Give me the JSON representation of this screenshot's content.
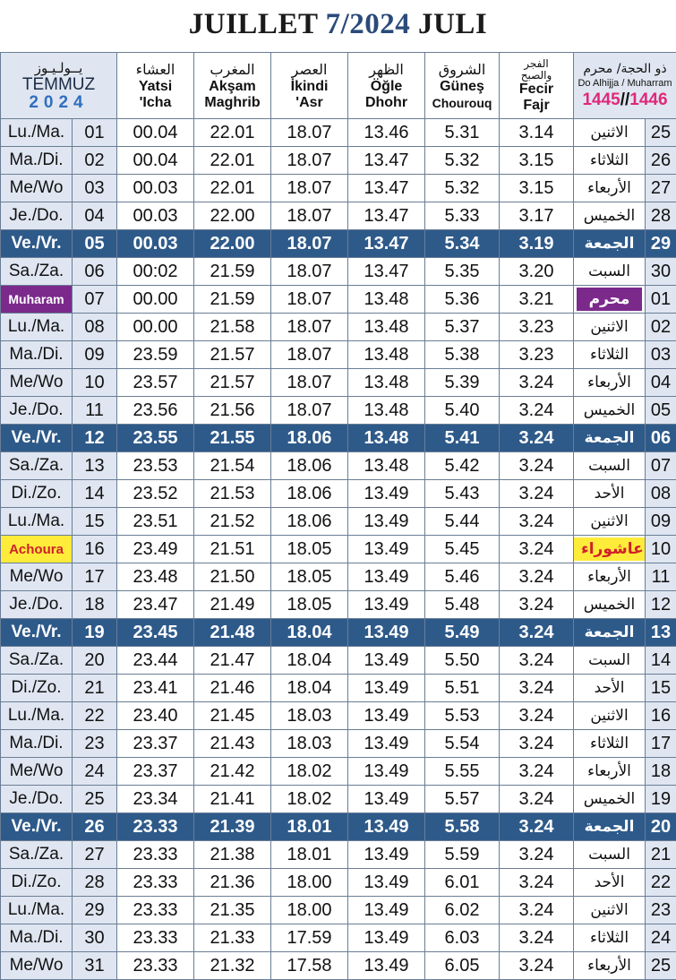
{
  "title": {
    "left": "JUILLET",
    "middle": "7/2024",
    "right": "JULI"
  },
  "colors": {
    "friday_row": "#2e5a8a",
    "muharram_highlight": "#7b2a8c",
    "achoura_highlight": "#ffec3a",
    "shaded_cell": "#dfe6f1",
    "hijri_year": "#e0287a"
  },
  "headers": {
    "day": {
      "ar": "يــولـيـوز",
      "name": "TEMMUZ",
      "year": "2024"
    },
    "isha": {
      "ar": "العشاء",
      "l1": "Yatsi",
      "l2": "'Icha"
    },
    "maghrib": {
      "ar": "المغرب",
      "l1": "Akşam",
      "l2": "Maghrib"
    },
    "asr": {
      "ar": "العصر",
      "l1": "İkindi",
      "l2": "'Asr"
    },
    "dhuhr": {
      "ar": "الظهر",
      "l1": "Öğle",
      "l2": "Dhohr"
    },
    "sunrise": {
      "ar": "الشروق",
      "l1": "Güneş",
      "l2": "Chourouq"
    },
    "fajr": {
      "ar1": "الفجر",
      "ar2": "والصبح",
      "l1": "Fecir",
      "l2": "Fajr"
    },
    "hijri": {
      "ar": "ذو الحجة/ محرم",
      "lat": "Do Alhijja / Muharram",
      "y1": "1445",
      "sep": "//",
      "y2": "1446"
    }
  },
  "rows": [
    {
      "day": "Lu./Ma.",
      "num": "01",
      "isha": "00.04",
      "maghrib": "22.01",
      "asr": "18.07",
      "dhuhr": "13.46",
      "sunrise": "5.31",
      "fajr": "3.14",
      "hday": "الاثنين",
      "hnum": "25"
    },
    {
      "day": "Ma./Di.",
      "num": "02",
      "isha": "00.04",
      "maghrib": "22.01",
      "asr": "18.07",
      "dhuhr": "13.47",
      "sunrise": "5.32",
      "fajr": "3.15",
      "hday": "الثلاثاء",
      "hnum": "26"
    },
    {
      "day": "Me/Wo",
      "num": "03",
      "isha": "00.03",
      "maghrib": "22.01",
      "asr": "18.07",
      "dhuhr": "13.47",
      "sunrise": "5.32",
      "fajr": "3.15",
      "hday": "الأربعاء",
      "hnum": "27"
    },
    {
      "day": "Je./Do.",
      "num": "04",
      "isha": "00.03",
      "maghrib": "22.00",
      "asr": "18.07",
      "dhuhr": "13.47",
      "sunrise": "5.33",
      "fajr": "3.17",
      "hday": "الخميس",
      "hnum": "28"
    },
    {
      "day": "Ve./Vr.",
      "num": "05",
      "isha": "00.03",
      "maghrib": "22.00",
      "asr": "18.07",
      "dhuhr": "13.47",
      "sunrise": "5.34",
      "fajr": "3.19",
      "hday": "الجمعة",
      "hnum": "29"
    },
    {
      "day": "Sa./Za.",
      "num": "06",
      "isha": "00:02",
      "maghrib": "21.59",
      "asr": "18.07",
      "dhuhr": "13.47",
      "sunrise": "5.35",
      "fajr": "3.20",
      "hday": "السبت",
      "hnum": "30"
    },
    {
      "day": "Muharam",
      "num": "07",
      "isha": "00.00",
      "maghrib": "21.59",
      "asr": "18.07",
      "dhuhr": "13.48",
      "sunrise": "5.36",
      "fajr": "3.21",
      "hday": "محرم",
      "hnum": "01"
    },
    {
      "day": "Lu./Ma.",
      "num": "08",
      "isha": "00.00",
      "maghrib": "21.58",
      "asr": "18.07",
      "dhuhr": "13.48",
      "sunrise": "5.37",
      "fajr": "3.23",
      "hday": "الاثنين",
      "hnum": "02"
    },
    {
      "day": "Ma./Di.",
      "num": "09",
      "isha": "23.59",
      "maghrib": "21.57",
      "asr": "18.07",
      "dhuhr": "13.48",
      "sunrise": "5.38",
      "fajr": "3.23",
      "hday": "الثلاثاء",
      "hnum": "03"
    },
    {
      "day": "Me/Wo",
      "num": "10",
      "isha": "23.57",
      "maghrib": "21.57",
      "asr": "18.07",
      "dhuhr": "13.48",
      "sunrise": "5.39",
      "fajr": "3.24",
      "hday": "الأربعاء",
      "hnum": "04"
    },
    {
      "day": "Je./Do.",
      "num": "11",
      "isha": "23.56",
      "maghrib": "21.56",
      "asr": "18.07",
      "dhuhr": "13.48",
      "sunrise": "5.40",
      "fajr": "3.24",
      "hday": "الخميس",
      "hnum": "05"
    },
    {
      "day": "Ve./Vr.",
      "num": "12",
      "isha": "23.55",
      "maghrib": "21.55",
      "asr": "18.06",
      "dhuhr": "13.48",
      "sunrise": "5.41",
      "fajr": "3.24",
      "hday": "الجمعة",
      "hnum": "06"
    },
    {
      "day": "Sa./Za.",
      "num": "13",
      "isha": "23.53",
      "maghrib": "21.54",
      "asr": "18.06",
      "dhuhr": "13.48",
      "sunrise": "5.42",
      "fajr": "3.24",
      "hday": "السبت",
      "hnum": "07"
    },
    {
      "day": "Di./Zo.",
      "num": "14",
      "isha": "23.52",
      "maghrib": "21.53",
      "asr": "18.06",
      "dhuhr": "13.49",
      "sunrise": "5.43",
      "fajr": "3.24",
      "hday": "الأحد",
      "hnum": "08"
    },
    {
      "day": "Lu./Ma.",
      "num": "15",
      "isha": "23.51",
      "maghrib": "21.52",
      "asr": "18.06",
      "dhuhr": "13.49",
      "sunrise": "5.44",
      "fajr": "3.24",
      "hday": "الاثنين",
      "hnum": "09"
    },
    {
      "day": "Achoura",
      "num": "16",
      "isha": "23.49",
      "maghrib": "21.51",
      "asr": "18.05",
      "dhuhr": "13.49",
      "sunrise": "5.45",
      "fajr": "3.24",
      "hday": "عاشوراء",
      "hnum": "10"
    },
    {
      "day": "Me/Wo",
      "num": "17",
      "isha": "23.48",
      "maghrib": "21.50",
      "asr": "18.05",
      "dhuhr": "13.49",
      "sunrise": "5.46",
      "fajr": "3.24",
      "hday": "الأربعاء",
      "hnum": "11"
    },
    {
      "day": "Je./Do.",
      "num": "18",
      "isha": "23.47",
      "maghrib": "21.49",
      "asr": "18.05",
      "dhuhr": "13.49",
      "sunrise": "5.48",
      "fajr": "3.24",
      "hday": "الخميس",
      "hnum": "12"
    },
    {
      "day": "Ve./Vr.",
      "num": "19",
      "isha": "23.45",
      "maghrib": "21.48",
      "asr": "18.04",
      "dhuhr": "13.49",
      "sunrise": "5.49",
      "fajr": "3.24",
      "hday": "الجمعة",
      "hnum": "13"
    },
    {
      "day": "Sa./Za.",
      "num": "20",
      "isha": "23.44",
      "maghrib": "21.47",
      "asr": "18.04",
      "dhuhr": "13.49",
      "sunrise": "5.50",
      "fajr": "3.24",
      "hday": "السبت",
      "hnum": "14"
    },
    {
      "day": "Di./Zo.",
      "num": "21",
      "isha": "23.41",
      "maghrib": "21.46",
      "asr": "18.04",
      "dhuhr": "13.49",
      "sunrise": "5.51",
      "fajr": "3.24",
      "hday": "الأحد",
      "hnum": "15"
    },
    {
      "day": "Lu./Ma.",
      "num": "22",
      "isha": "23.40",
      "maghrib": "21.45",
      "asr": "18.03",
      "dhuhr": "13.49",
      "sunrise": "5.53",
      "fajr": "3.24",
      "hday": "الاثنين",
      "hnum": "16"
    },
    {
      "day": "Ma./Di.",
      "num": "23",
      "isha": "23.37",
      "maghrib": "21.43",
      "asr": "18.03",
      "dhuhr": "13.49",
      "sunrise": "5.54",
      "fajr": "3.24",
      "hday": "الثلاثاء",
      "hnum": "17"
    },
    {
      "day": "Me/Wo",
      "num": "24",
      "isha": "23.37",
      "maghrib": "21.42",
      "asr": "18.02",
      "dhuhr": "13.49",
      "sunrise": "5.55",
      "fajr": "3.24",
      "hday": "الأربعاء",
      "hnum": "18"
    },
    {
      "day": "Je./Do.",
      "num": "25",
      "isha": "23.34",
      "maghrib": "21.41",
      "asr": "18.02",
      "dhuhr": "13.49",
      "sunrise": "5.57",
      "fajr": "3.24",
      "hday": "الخميس",
      "hnum": "19"
    },
    {
      "day": "Ve./Vr.",
      "num": "26",
      "isha": "23.33",
      "maghrib": "21.39",
      "asr": "18.01",
      "dhuhr": "13.49",
      "sunrise": "5.58",
      "fajr": "3.24",
      "hday": "الجمعة",
      "hnum": "20"
    },
    {
      "day": "Sa./Za.",
      "num": "27",
      "isha": "23.33",
      "maghrib": "21.38",
      "asr": "18.01",
      "dhuhr": "13.49",
      "sunrise": "5.59",
      "fajr": "3.24",
      "hday": "السبت",
      "hnum": "21"
    },
    {
      "day": "Di./Zo.",
      "num": "28",
      "isha": "23.33",
      "maghrib": "21.36",
      "asr": "18.00",
      "dhuhr": "13.49",
      "sunrise": "6.01",
      "fajr": "3.24",
      "hday": "الأحد",
      "hnum": "22"
    },
    {
      "day": "Lu./Ma.",
      "num": "29",
      "isha": "23.33",
      "maghrib": "21.35",
      "asr": "18.00",
      "dhuhr": "13.49",
      "sunrise": "6.02",
      "fajr": "3.24",
      "hday": "الاثنين",
      "hnum": "23"
    },
    {
      "day": "Ma./Di.",
      "num": "30",
      "isha": "23.33",
      "maghrib": "21.33",
      "asr": "17.59",
      "dhuhr": "13.49",
      "sunrise": "6.03",
      "fajr": "3.24",
      "hday": "الثلاثاء",
      "hnum": "24"
    },
    {
      "day": "Me/Wo",
      "num": "31",
      "isha": "23.33",
      "maghrib": "21.32",
      "asr": "17.58",
      "dhuhr": "13.49",
      "sunrise": "6.05",
      "fajr": "3.24",
      "hday": "الأربعاء",
      "hnum": "25"
    }
  ]
}
